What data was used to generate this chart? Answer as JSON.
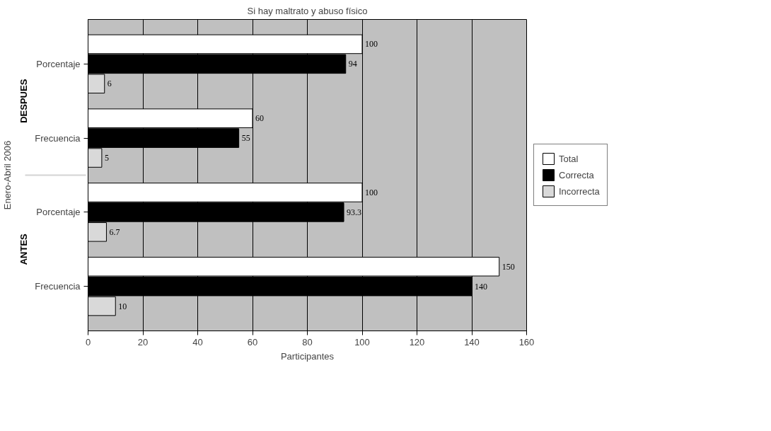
{
  "chart_data": {
    "type": "bar",
    "orientation": "horizontal",
    "title": "Si hay maltrato y abuso físico",
    "xlabel": "Participantes",
    "ylabel": "Enero-Abril 2006",
    "categories": [
      "Porcentaje",
      "Frecuencia",
      "Porcentaje",
      "Frecuencia"
    ],
    "annotations": [
      "DESPUES",
      "ANTES"
    ],
    "series": [
      {
        "name": "Total",
        "color": "#ffffff",
        "values": [
          100,
          60,
          100,
          150
        ]
      },
      {
        "name": "Correcta",
        "color": "#000000",
        "values": [
          94,
          55,
          93.3,
          140
        ]
      },
      {
        "name": "Incorrecta",
        "color": "#d9d9d9",
        "values": [
          6,
          5,
          6.7,
          10
        ]
      }
    ],
    "xlim": [
      0,
      160
    ],
    "xticks": [
      0,
      20,
      40,
      60,
      80,
      100,
      120,
      140,
      160
    ],
    "grid": "x",
    "legend": "right",
    "data_labels": true
  }
}
